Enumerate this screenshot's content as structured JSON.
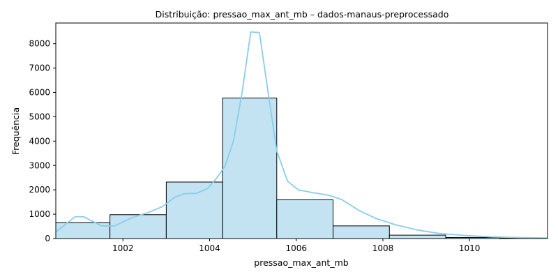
{
  "chart_data": {
    "type": "bar",
    "subtype": "histogram-with-kde",
    "title": "Distribuição: pressao_max_ant_mb – dados-manaus-preprocessado",
    "xlabel": "pressao_max_ant_mb",
    "ylabel": "Frequência",
    "xlim": [
      1000.45,
      1011.8
    ],
    "ylim": [
      0,
      8850
    ],
    "x_ticks": [
      1002,
      1004,
      1006,
      1008,
      1010
    ],
    "y_ticks": [
      0,
      1000,
      2000,
      3000,
      4000,
      5000,
      6000,
      7000,
      8000
    ],
    "grid": false,
    "legend": "none",
    "bar_color": "#c3e3f2",
    "bar_edge_color": "#000000",
    "kde_color": "#87ceeb",
    "bins": [
      {
        "x0": 1000.45,
        "x1": 1001.7,
        "count": 650
      },
      {
        "x0": 1001.7,
        "x1": 1003.0,
        "count": 980
      },
      {
        "x0": 1003.0,
        "x1": 1004.3,
        "count": 2320
      },
      {
        "x0": 1004.3,
        "x1": 1005.55,
        "count": 5770
      },
      {
        "x0": 1005.55,
        "x1": 1006.85,
        "count": 1590
      },
      {
        "x0": 1006.85,
        "x1": 1008.15,
        "count": 520
      },
      {
        "x0": 1008.15,
        "x1": 1009.45,
        "count": 140
      },
      {
        "x0": 1009.45,
        "x1": 1010.7,
        "count": 45
      },
      {
        "x0": 1010.7,
        "x1": 1011.8,
        "count": 25
      }
    ],
    "kde_curve": [
      {
        "x": 1000.45,
        "y": 270
      },
      {
        "x": 1000.9,
        "y": 900
      },
      {
        "x": 1001.1,
        "y": 890
      },
      {
        "x": 1001.5,
        "y": 520
      },
      {
        "x": 1001.8,
        "y": 510
      },
      {
        "x": 1002.2,
        "y": 850
      },
      {
        "x": 1002.6,
        "y": 1080
      },
      {
        "x": 1002.9,
        "y": 1300
      },
      {
        "x": 1003.2,
        "y": 1700
      },
      {
        "x": 1003.4,
        "y": 1840
      },
      {
        "x": 1003.7,
        "y": 1860
      },
      {
        "x": 1003.95,
        "y": 2050
      },
      {
        "x": 1004.15,
        "y": 2450
      },
      {
        "x": 1004.35,
        "y": 2950
      },
      {
        "x": 1004.55,
        "y": 4000
      },
      {
        "x": 1004.75,
        "y": 6000
      },
      {
        "x": 1004.95,
        "y": 8480
      },
      {
        "x": 1005.15,
        "y": 8460
      },
      {
        "x": 1005.35,
        "y": 6000
      },
      {
        "x": 1005.55,
        "y": 3600
      },
      {
        "x": 1005.8,
        "y": 2350
      },
      {
        "x": 1006.05,
        "y": 2000
      },
      {
        "x": 1006.4,
        "y": 1880
      },
      {
        "x": 1006.75,
        "y": 1780
      },
      {
        "x": 1007.05,
        "y": 1600
      },
      {
        "x": 1007.45,
        "y": 1150
      },
      {
        "x": 1007.85,
        "y": 820
      },
      {
        "x": 1008.3,
        "y": 560
      },
      {
        "x": 1008.8,
        "y": 350
      },
      {
        "x": 1009.3,
        "y": 210
      },
      {
        "x": 1009.9,
        "y": 130
      },
      {
        "x": 1010.5,
        "y": 70
      },
      {
        "x": 1011.2,
        "y": 40
      },
      {
        "x": 1011.8,
        "y": 25
      }
    ]
  }
}
